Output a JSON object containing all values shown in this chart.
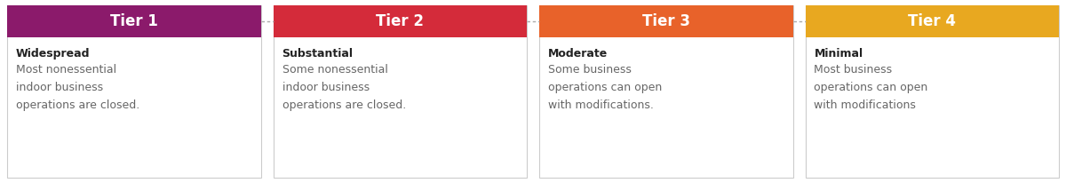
{
  "tiers": [
    {
      "title": "Tier 1",
      "header_color": "#8B1A6B",
      "subtitle": "Widespread",
      "description": "Most nonessential\nindoor business\noperations are closed."
    },
    {
      "title": "Tier 2",
      "header_color": "#D42B3A",
      "subtitle": "Substantial",
      "description": "Some nonessential\nindoor business\noperations are closed."
    },
    {
      "title": "Tier 3",
      "header_color": "#E8622A",
      "subtitle": "Moderate",
      "description": "Some business\noperations can open\nwith modifications."
    },
    {
      "title": "Tier 4",
      "header_color": "#E8A820",
      "subtitle": "Minimal",
      "description": "Most business\noperations can open\nwith modifications"
    }
  ],
  "background_color": "#ffffff",
  "card_background": "#ffffff",
  "card_border_color": "#cccccc",
  "connector_color": "#aaaaaa",
  "title_text_color": "#ffffff",
  "subtitle_text_color": "#222222",
  "body_text_color": "#666666",
  "fig_width": 12.0,
  "fig_height": 2.06,
  "dpi": 100
}
